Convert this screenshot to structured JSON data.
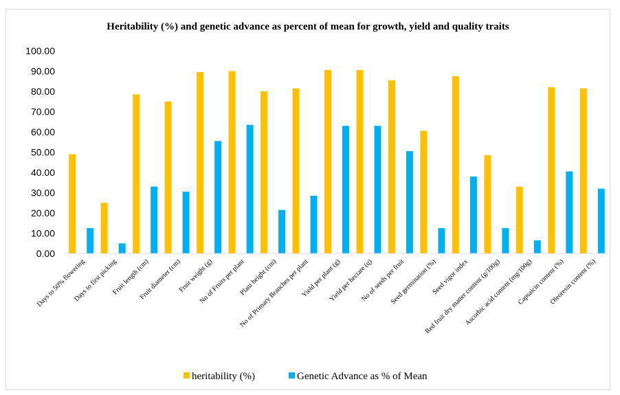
{
  "chart_data": {
    "type": "bar",
    "title": "Heritability (%) and genetic advance as percent of mean for growth, yield and quality traits",
    "xlabel": "",
    "ylabel": "",
    "ylim": [
      0,
      100
    ],
    "yticks": [
      "0.00",
      "10.00",
      "20.00",
      "30.00",
      "40.00",
      "50.00",
      "60.00",
      "70.00",
      "80.00",
      "90.00",
      "100.00"
    ],
    "grid": false,
    "legend_position": "bottom",
    "categories": [
      "Days to 50% flowering",
      "Days to first picking",
      "Fruit length (cm)",
      "Fruit diameter (cm)",
      "Fruit weight (g)",
      "No of Fruits per plant",
      "Plant height (cm)",
      "No of Primary Branches per plant",
      "Yield per plant (g)",
      "Yield per hectare (q)",
      "No of seeds per fruit",
      "Seed germination (%)",
      "Seed vigor index",
      "Red fruit dry matter content (g/100g)",
      "Ascorbic acid content (mg/100g)",
      "Capsaicin content (%)",
      "Oleoresin content (%)"
    ],
    "series": [
      {
        "name": "heritability (%)",
        "color": "#FFC000",
        "values": [
          49,
          25,
          78.5,
          75,
          89.5,
          90,
          80,
          81.5,
          90.5,
          90.5,
          85.5,
          60.5,
          87.5,
          48.5,
          33,
          82,
          81.5
        ]
      },
      {
        "name": "Genetic Advance as % of Mean",
        "color": "#00B0F0",
        "values": [
          12.5,
          5,
          33,
          30.5,
          55.5,
          63.5,
          21.5,
          28.5,
          63,
          63,
          50.5,
          12.5,
          38,
          12.5,
          6.5,
          40.5,
          32
        ]
      }
    ]
  }
}
